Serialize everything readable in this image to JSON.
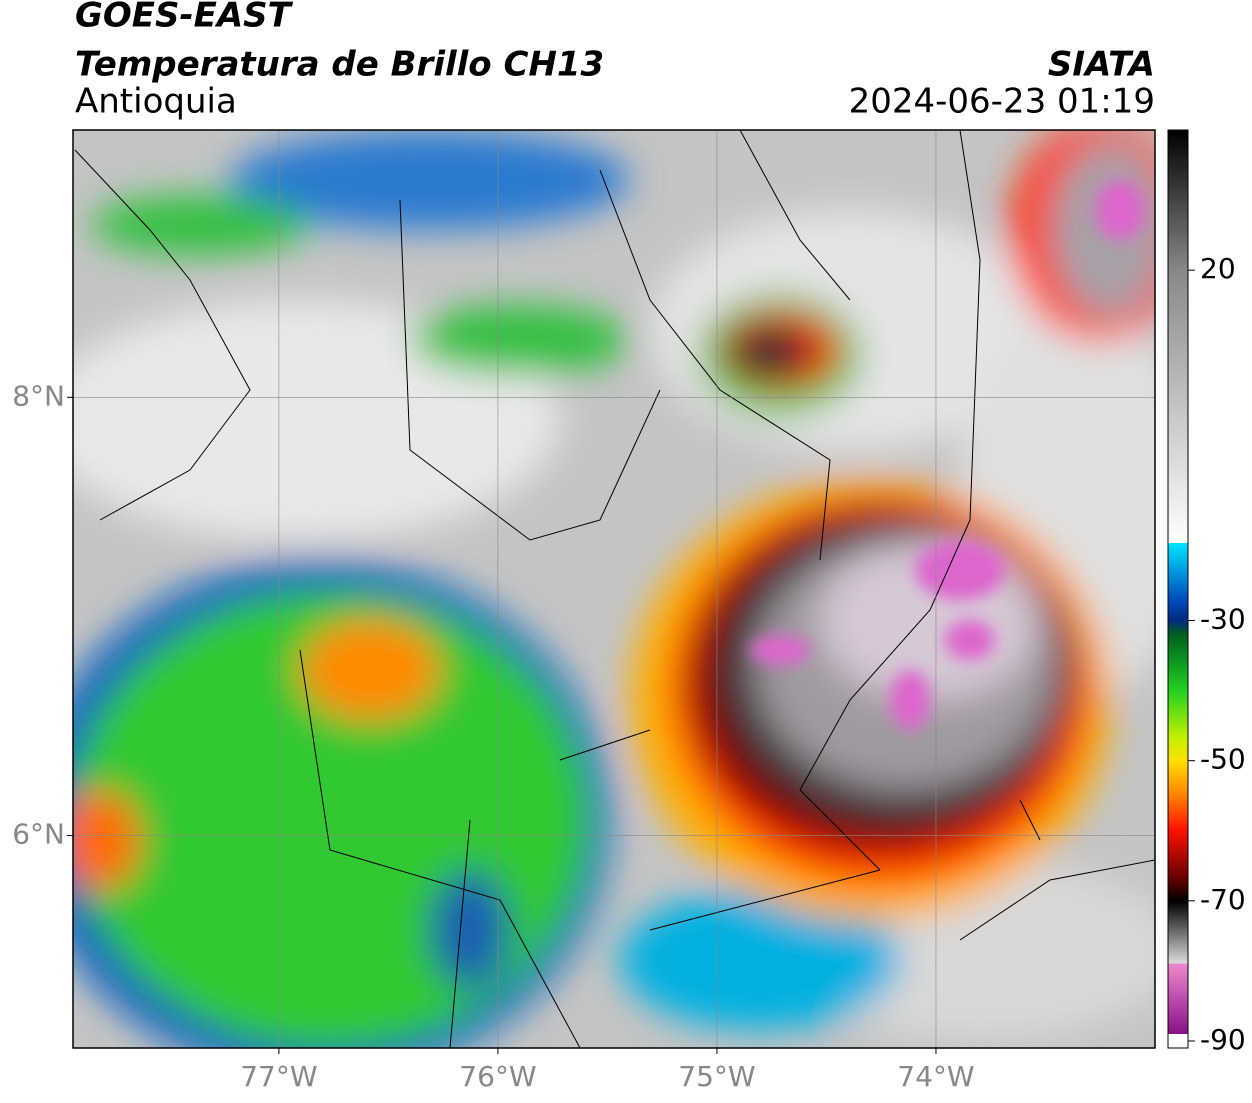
{
  "header": {
    "satellite": "GOES-EAST",
    "product": "Temperatura de Brillo CH13",
    "region": "Antioquia",
    "source": "SIATA",
    "datetime": "2024-06-23 01:19"
  },
  "map": {
    "xlim": [
      -77.94,
      -73.0
    ],
    "ylim": [
      5.03,
      9.22
    ],
    "grid": true,
    "xticks": [
      {
        "value": -77,
        "label": "77°W"
      },
      {
        "value": -76,
        "label": "76°W"
      },
      {
        "value": -75,
        "label": "75°W"
      },
      {
        "value": -74,
        "label": "74°W"
      }
    ],
    "yticks": [
      {
        "value": 6,
        "label": "6°N"
      },
      {
        "value": 8,
        "label": "8°N"
      }
    ]
  },
  "colorbar": {
    "lim": [
      -91,
      40
    ],
    "ticks": [
      20,
      -30,
      -50,
      -70,
      -90
    ]
  }
}
